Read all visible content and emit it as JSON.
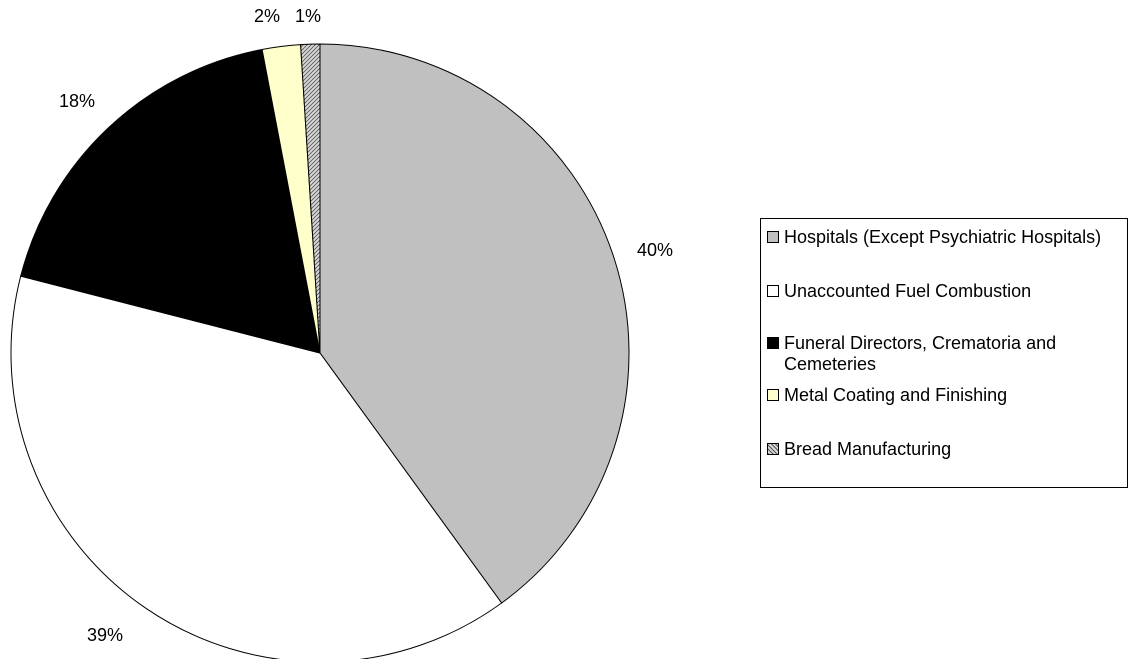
{
  "chart_data": {
    "type": "pie",
    "slices": [
      {
        "label": "Hospitals (Except Psychiatric Hospitals)",
        "value": 40,
        "display": "40%",
        "color": "#c0c0c0"
      },
      {
        "label": "Unaccounted Fuel Combustion",
        "value": 39,
        "display": "39%",
        "color": "#ffffff"
      },
      {
        "label": "Funeral Directors, Crematoria and Cemeteries",
        "value": 18,
        "display": "18%",
        "color": "#000000"
      },
      {
        "label": "Metal Coating and Finishing",
        "value": 2,
        "display": "2%",
        "color": "#ffffcc"
      },
      {
        "label": "Bread Manufacturing",
        "value": 1,
        "display": "1%",
        "color": "#d0d0d0",
        "pattern": "hatched"
      }
    ],
    "legend_position": "right",
    "start_angle": "12 o'clock",
    "direction": "clockwise"
  }
}
